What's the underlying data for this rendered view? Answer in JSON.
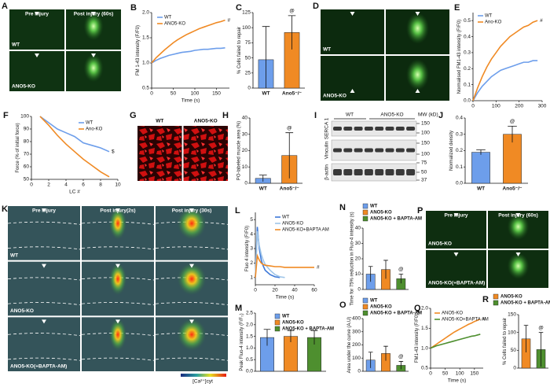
{
  "chart_data": [
    {
      "type": "line",
      "label": "B",
      "ylabel": "FM 1-43 intensity (F/F0)",
      "xlabel": "Time (s)",
      "x": [
        0,
        10,
        20,
        30,
        40,
        50,
        60,
        70,
        80,
        90,
        100,
        110,
        120,
        130,
        140,
        150,
        160,
        170
      ],
      "xlim": [
        0,
        180
      ],
      "xticks": [
        0,
        50,
        100,
        150
      ],
      "ylim": [
        0.5,
        2
      ],
      "yticks": [
        0.5,
        {
          "value": 1,
          "label": "1.0"
        },
        1.5,
        {
          "value": 2,
          "label": "2.0"
        }
      ],
      "series": [
        {
          "name": "WT",
          "color": "#6d9eeb",
          "values": [
            1.0,
            1.05,
            1.09,
            1.12,
            1.15,
            1.17,
            1.19,
            1.21,
            1.22,
            1.23,
            1.25,
            1.26,
            1.27,
            1.27,
            1.28,
            1.29,
            1.29,
            1.3
          ]
        },
        {
          "name": "ANO5-KO",
          "color": "#f08a24",
          "values": [
            1.0,
            1.1,
            1.18,
            1.26,
            1.33,
            1.4,
            1.46,
            1.51,
            1.56,
            1.6,
            1.64,
            1.68,
            1.71,
            1.74,
            1.77,
            1.8,
            1.82,
            1.85
          ]
        }
      ],
      "annotation": "#"
    },
    {
      "type": "bar",
      "label": "C",
      "ylabel": "% Cells failed to repair",
      "categories": [
        "WT",
        "Ano5⁻/⁻"
      ],
      "values": [
        47,
        92
      ],
      "errors": [
        55,
        28
      ],
      "colors": [
        "#6d9eeb",
        "#f08a24"
      ],
      "ylim": [
        0,
        125
      ],
      "yticks": [
        0,
        25,
        50,
        75,
        100,
        125
      ],
      "annotation": "@"
    },
    {
      "type": "line",
      "label": "E",
      "ylabel": "Normalised FM1-43 intensity (F/F0)",
      "x": [
        0,
        20,
        40,
        60,
        80,
        100,
        120,
        140,
        160,
        180,
        200,
        220,
        240,
        260,
        280
      ],
      "xlim": [
        0,
        300
      ],
      "xticks": [
        0,
        100,
        200,
        300
      ],
      "ylim": [
        0,
        0.55
      ],
      "yticks": [
        {
          "value": 0,
          "label": "0.0"
        },
        0.1,
        0.2,
        0.3,
        0.4,
        0.5
      ],
      "series": [
        {
          "name": "WT",
          "color": "#6d9eeb",
          "values": [
            0,
            0.05,
            0.09,
            0.12,
            0.15,
            0.17,
            0.19,
            0.2,
            0.21,
            0.22,
            0.23,
            0.24,
            0.24,
            0.25,
            0.25
          ]
        },
        {
          "name": "Ano-KO",
          "color": "#f08a24",
          "values": [
            0,
            0.08,
            0.15,
            0.21,
            0.26,
            0.3,
            0.34,
            0.37,
            0.4,
            0.42,
            0.44,
            0.46,
            0.47,
            0.49,
            0.5
          ]
        }
      ],
      "annotation": "#"
    },
    {
      "type": "line",
      "label": "F",
      "ylabel": "Force (% of initial force)",
      "xlabel": "LC #",
      "x": [
        1,
        2,
        3,
        4,
        5,
        6,
        7,
        8,
        9
      ],
      "xlim": [
        0,
        10
      ],
      "xticks": [
        0,
        2,
        4,
        6,
        8,
        10
      ],
      "ylim": [
        50,
        100
      ],
      "yticks": [
        50,
        60,
        70,
        80,
        90,
        100
      ],
      "series": [
        {
          "name": "WT",
          "color": "#6d9eeb",
          "values": [
            100,
            95,
            90,
            87,
            84,
            79,
            77,
            75,
            72
          ]
        },
        {
          "name": "Ano-KO",
          "color": "#f08a24",
          "values": [
            100,
            93,
            85,
            78,
            72,
            66,
            61,
            56,
            52
          ]
        }
      ],
      "annotation": "$"
    },
    {
      "type": "bar",
      "label": "H",
      "ylabel": "PO-labeled muscle area (%)",
      "categories": [
        "WT",
        "Ano5⁻/⁻"
      ],
      "values": [
        3,
        17
      ],
      "errors": [
        2,
        14
      ],
      "colors": [
        "#6d9eeb",
        "#f08a24"
      ],
      "ylim": [
        0,
        40
      ],
      "yticks": [
        0,
        10,
        20,
        30,
        40
      ],
      "annotation": "@"
    },
    {
      "type": "bar",
      "label": "J",
      "ylabel": "Normalized density",
      "categories": [
        "WT",
        "Ano5⁻/⁻"
      ],
      "values": [
        0.19,
        0.3
      ],
      "errors": [
        0.015,
        0.05
      ],
      "colors": [
        "#6d9eeb",
        "#f08a24"
      ],
      "ylim": [
        0,
        0.4
      ],
      "yticks": [
        {
          "value": 0,
          "label": "0.0"
        },
        0.1,
        0.2,
        0.3,
        0.4
      ],
      "annotation": "@"
    },
    {
      "type": "line",
      "label": "L",
      "ylabel": "Fluo 4 intensity (F/F0)",
      "xlabel": "Time (s)",
      "x": [
        0,
        2,
        4,
        6,
        8,
        10,
        15,
        20,
        25,
        30,
        40,
        50,
        60
      ],
      "xlim": [
        0,
        60
      ],
      "xticks": [
        0,
        20,
        40,
        60
      ],
      "ylim": [
        0.5,
        5.5
      ],
      "yticks": [
        1,
        2,
        3,
        4,
        5
      ],
      "series": [
        {
          "name": "WT",
          "color": "#3d78d8",
          "values": [
            1,
            4.5,
            3,
            2.2,
            1.8,
            1.5,
            1.2,
            1.05,
            1,
            null,
            null,
            null,
            null
          ]
        },
        {
          "name": "ANO5-KO",
          "color": "#9fc5e8",
          "values": [
            1,
            4.2,
            3.2,
            2.6,
            2.2,
            1.9,
            1.5,
            1.2,
            1.05,
            1,
            null,
            null,
            null
          ]
        },
        {
          "name": "ANO5-KO+BAPTA AM",
          "color": "#f08a24",
          "values": [
            1,
            2.5,
            2.2,
            2,
            1.9,
            1.85,
            1.8,
            1.75,
            1.75,
            1.7,
            1.7,
            1.7,
            1.7
          ]
        }
      ],
      "annotation": "#"
    },
    {
      "type": "bar",
      "label": "M",
      "ylabel": "Peak Fluo-4 intensity (F/F₀)",
      "ylim": [
        0,
        2.5
      ],
      "yticks": [
        {
          "value": 0,
          "label": "0.0"
        },
        0.5,
        {
          "value": 1,
          "label": "1.0"
        },
        1.5,
        {
          "value": 2,
          "label": "2.0"
        },
        2.5
      ],
      "series": [
        {
          "name": "WT",
          "color": "#6d9eeb",
          "values": [
            1.45
          ],
          "errors": [
            0.35
          ]
        },
        {
          "name": "ANO5-KO",
          "color": "#f08a24",
          "values": [
            1.5
          ],
          "errors": [
            0.25
          ]
        },
        {
          "name": "ANO5-KO + BAPTA-AM",
          "color": "#4e8f2f",
          "values": [
            1.45
          ],
          "errors": [
            0.3
          ]
        }
      ]
    },
    {
      "type": "bar",
      "label": "N",
      "ylabel": "Time for 75% reduction in Fluo-4 intensity (s)",
      "ylim": [
        0,
        40
      ],
      "yticks": [
        0,
        10,
        20,
        30,
        40
      ],
      "series": [
        {
          "name": "WT",
          "color": "#6d9eeb",
          "values": [
            10
          ],
          "errors": [
            5
          ]
        },
        {
          "name": "ANO5-KO",
          "color": "#f08a24",
          "values": [
            13
          ],
          "errors": [
            6
          ]
        },
        {
          "name": "ANO5-KO + BAPTA-AM",
          "color": "#4e8f2f",
          "values": [
            7
          ],
          "errors": [
            3
          ]
        }
      ],
      "annotation": "@"
    },
    {
      "type": "bar",
      "label": "O",
      "ylabel": "Area under the curve (A.U)",
      "ylim": [
        0,
        400
      ],
      "yticks": [
        0,
        100,
        200,
        300,
        400
      ],
      "series": [
        {
          "name": "WT",
          "color": "#6d9eeb",
          "values": [
            85
          ],
          "errors": [
            60
          ]
        },
        {
          "name": "ANO5-KO",
          "color": "#f08a24",
          "values": [
            135
          ],
          "errors": [
            55
          ]
        },
        {
          "name": "ANO5-KO + BAPTA-AM",
          "color": "#4e8f2f",
          "values": [
            45
          ],
          "errors": [
            30
          ]
        }
      ],
      "annotation": "@"
    },
    {
      "type": "line",
      "label": "Q",
      "ylabel": "FM1-43 intensity (F/F0)",
      "xlabel": "Time (s)",
      "x": [
        0,
        10,
        20,
        30,
        40,
        50,
        60,
        70,
        80,
        90,
        100,
        110,
        120,
        130,
        140,
        150,
        160,
        170
      ],
      "xlim": [
        0,
        180
      ],
      "xticks": [
        0,
        50,
        100,
        150
      ],
      "ylim": [
        0.5,
        2
      ],
      "yticks": [
        0.5,
        {
          "value": 1,
          "label": "1.0"
        },
        1.5,
        {
          "value": 2,
          "label": "2.0"
        }
      ],
      "series": [
        {
          "name": "ANO5-KO",
          "color": "#f08a24",
          "values": [
            1,
            1.05,
            1.1,
            1.15,
            1.2,
            1.25,
            1.3,
            1.35,
            1.4,
            1.44,
            1.48,
            1.52,
            1.56,
            1.6,
            1.63,
            1.67,
            1.7,
            1.73
          ]
        },
        {
          "name": "ANO5-KO+BAPTA AM",
          "color": "#4e8f2f",
          "values": [
            1,
            1.03,
            1.06,
            1.08,
            1.1,
            1.12,
            1.14,
            1.16,
            1.18,
            1.2,
            1.22,
            1.24,
            1.26,
            1.28,
            1.3,
            1.31,
            1.33,
            1.35
          ]
        }
      ],
      "annotation": "#"
    },
    {
      "type": "bar",
      "label": "R",
      "ylabel": "% Cells failed to repair",
      "ylim": [
        0,
        150
      ],
      "yticks": [
        0,
        50,
        100,
        150
      ],
      "series": [
        {
          "name": "ANO5-KO",
          "color": "#f08a24",
          "values": [
            82
          ],
          "errors": [
            38
          ]
        },
        {
          "name": "ANO5-KO + BAPTA-AM",
          "color": "#4e8f2f",
          "values": [
            52
          ],
          "errors": [
            48
          ]
        }
      ],
      "annotation": "@"
    }
  ],
  "panels": [
    {
      "label": "A",
      "columns": [
        "Pre injury",
        "Post injury (60s)"
      ],
      "rows": [
        "WT",
        "ANO5-KO"
      ]
    },
    {
      "label": "D",
      "rows": [
        "WT",
        "ANO5-KO"
      ]
    },
    {
      "label": "G",
      "columns": [
        "WT",
        "ANO5-KO"
      ]
    },
    {
      "label": "I",
      "groups": [
        "WT",
        "ANO5-KO"
      ],
      "mw_header": "MW (kD)",
      "bands": [
        "SERCA 1",
        "Vinculin",
        "β-actin"
      ],
      "mw": [
        "150",
        "100",
        "150",
        "100",
        "75",
        "50",
        "37"
      ]
    },
    {
      "label": "K",
      "columns": [
        "Pre injury",
        "Post injury(2s)",
        "Post injury (30s)"
      ],
      "rows": [
        "WT",
        "ANO5-KO",
        "ANO5-KO(+BAPTA-AM)"
      ],
      "scale": "[Ca²⁺]cyt"
    },
    {
      "label": "P",
      "columns": [
        "Pre injury",
        "Post injury (60s)"
      ],
      "rows": [
        "ANO5-KO",
        "ANO5-KO(+BAPTA-AM)"
      ]
    }
  ]
}
